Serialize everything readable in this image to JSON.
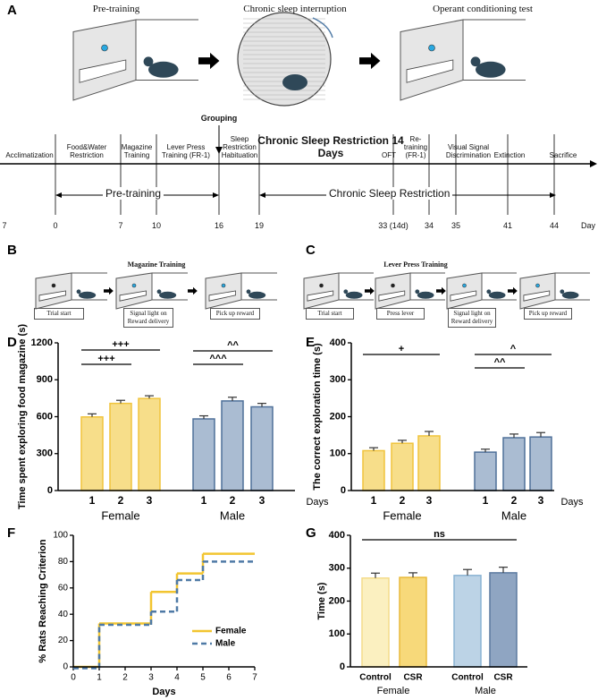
{
  "panel_labels": [
    "A",
    "B",
    "C",
    "D",
    "E",
    "F",
    "G"
  ],
  "panel_a": {
    "titles": [
      "Pre-training",
      "Chronic sleep interruption",
      "Operant conditioning test"
    ],
    "grouping": "Grouping",
    "stages": [
      "Acclimatization",
      "Food&Water Restriction",
      "Magazine Training",
      "Lever Press Training (FR-1)",
      "Sleep Restriction Habituation",
      "Chronic Sleep Restriction 14 Days",
      "OFT",
      "Re-training (FR-1)",
      "Visual Signal Discrimination",
      "Extinction",
      "Sacrifice"
    ],
    "days": [
      "7",
      "0",
      "7",
      "10",
      "16",
      "19",
      "33 (14d)",
      "34",
      "35",
      "41",
      "44",
      "Day"
    ],
    "spans": [
      "Pre-training",
      "Chronic Sleep Restriction"
    ]
  },
  "panel_b": {
    "title": "Magazine Training",
    "steps": [
      "Trial start",
      "Signal light on Reward delivery",
      "Pick up reward"
    ]
  },
  "panel_c": {
    "title": "Lever Press Training",
    "steps": [
      "Trial start",
      "Press lever",
      "Signal light on Reward delivery",
      "Pick up reward"
    ]
  },
  "chart_data": [
    {
      "type": "bar",
      "ylabel": "Time spent exploring food magazine (s)",
      "ylim": [
        0,
        1200
      ],
      "yticks": [
        0,
        300,
        600,
        900,
        1200
      ],
      "categories": [
        "1",
        "2",
        "3",
        "1",
        "2",
        "3"
      ],
      "values": [
        598,
        708,
        748,
        582,
        728,
        680
      ],
      "errors": [
        25,
        25,
        22,
        25,
        30,
        28
      ],
      "colors": [
        "#f7de8a",
        "#f7de8a",
        "#f7de8a",
        "#aabcd2",
        "#aabcd2",
        "#aabcd2"
      ],
      "edge_colors": [
        "#f0c43c",
        "#f0c43c",
        "#f0c43c",
        "#4f7099",
        "#4f7099",
        "#4f7099"
      ],
      "groups": [
        "Female",
        "Male"
      ],
      "xlabel": "Days",
      "annotations": [
        "+++",
        "+++",
        "^^^",
        "^^"
      ]
    },
    {
      "type": "bar",
      "ylabel": "The correct exploration time (s)",
      "ylim": [
        0,
        400
      ],
      "yticks": [
        0,
        100,
        200,
        300,
        400
      ],
      "categories": [
        "1",
        "2",
        "3",
        "1",
        "2",
        "3"
      ],
      "values": [
        108,
        128,
        148,
        104,
        143,
        145
      ],
      "errors": [
        8,
        8,
        12,
        8,
        10,
        12
      ],
      "colors": [
        "#f7de8a",
        "#f7de8a",
        "#f7de8a",
        "#aabcd2",
        "#aabcd2",
        "#aabcd2"
      ],
      "edge_colors": [
        "#f0c43c",
        "#f0c43c",
        "#f0c43c",
        "#4f7099",
        "#4f7099",
        "#4f7099"
      ],
      "groups": [
        "Female",
        "Male"
      ],
      "xlabel": "Days",
      "annotations": [
        "+",
        "^^",
        "^"
      ]
    },
    {
      "type": "line",
      "step": true,
      "ylabel": "% Rats Reaching Criterion",
      "xlabel": "Days",
      "xlim": [
        0,
        7
      ],
      "xticks": [
        0,
        1,
        2,
        3,
        4,
        5,
        6,
        7
      ],
      "ylim": [
        0,
        100
      ],
      "yticks": [
        0,
        20,
        40,
        60,
        80,
        100
      ],
      "x": [
        0,
        1,
        3,
        4,
        5
      ],
      "legend": "lower right",
      "series": [
        {
          "name": "Female",
          "color": "#f2c530",
          "values": [
            0,
            33,
            57,
            71,
            86
          ]
        },
        {
          "name": "Male",
          "color": "#4f7aa6",
          "dashed": true,
          "values": [
            0,
            33,
            43,
            67,
            81
          ]
        }
      ]
    },
    {
      "type": "bar",
      "ylabel": "Time (s)",
      "ylim": [
        0,
        400
      ],
      "yticks": [
        0,
        100,
        200,
        300,
        400
      ],
      "categories": [
        "Control",
        "CSR",
        "Control",
        "CSR"
      ],
      "values": [
        270,
        272,
        278,
        286
      ],
      "errors": [
        15,
        14,
        18,
        17
      ],
      "colors": [
        "#fbf0c0",
        "#f7d97a",
        "#bcd3e6",
        "#8fa5c2"
      ],
      "edge_colors": [
        "#f4dc8a",
        "#e8b93a",
        "#8ab3d3",
        "#5c7aa0"
      ],
      "groups": [
        "Female",
        "Male"
      ],
      "annotations": [
        "ns"
      ]
    }
  ]
}
